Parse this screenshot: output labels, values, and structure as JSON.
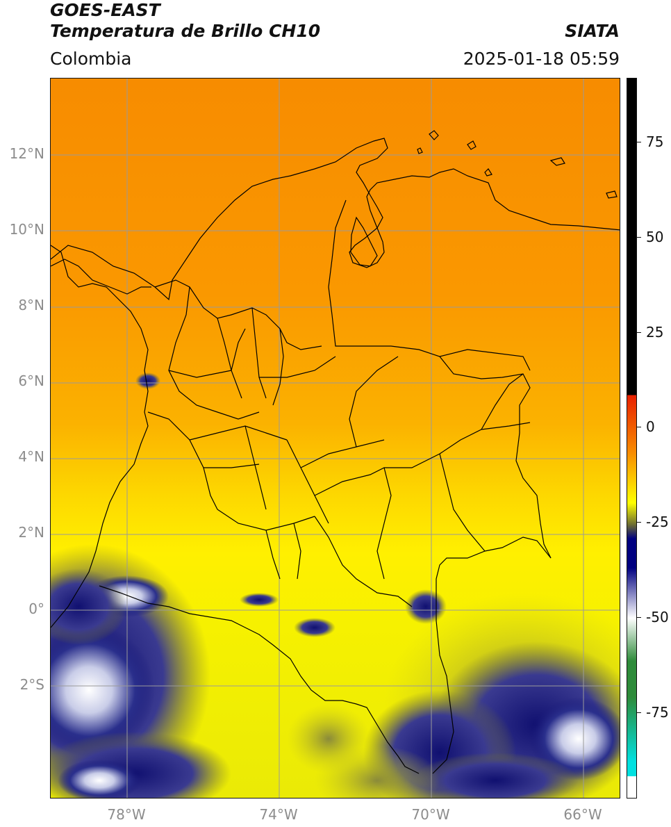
{
  "header": {
    "satellite": "GOES-EAST",
    "product": "Temperatura de Brillo CH10",
    "brand": "SIATA",
    "region": "Colombia",
    "datetime": "2025-01-18 05:59"
  },
  "map": {
    "lat_labels": [
      "12°N",
      "10°N",
      "8°N",
      "6°N",
      "4°N",
      "2°N",
      "0°",
      "2°S"
    ],
    "lon_labels": [
      "78°W",
      "74°W",
      "70°W",
      "66°W"
    ],
    "gridline_color": "#9a9a9a",
    "border_color": "#000000"
  },
  "colorbar": {
    "tick_labels": [
      "75",
      "50",
      "25",
      "0",
      "-25",
      "-50",
      "-75"
    ],
    "colors": {
      "black": "#000000",
      "red": "#e82000",
      "orange": "#f88c00",
      "yellow": "#ffff00",
      "olive": "#6e6e32",
      "navy": "#000080",
      "white": "#ffffff",
      "green": "#2e8b3a",
      "cyan": "#00e0e0"
    }
  }
}
